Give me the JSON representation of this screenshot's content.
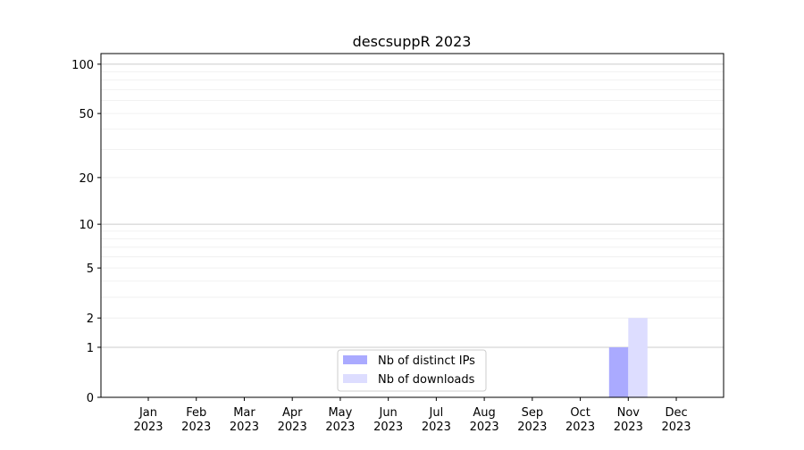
{
  "chart_data": {
    "type": "bar",
    "title": "descsuppR 2023",
    "xlabel": "",
    "ylabel": "",
    "y_scale": "symlog",
    "ylim": [
      0,
      116
    ],
    "y_ticks": [
      0,
      1,
      2,
      5,
      10,
      20,
      50,
      100
    ],
    "grid": true,
    "categories": [
      "Jan\n2023",
      "Feb\n2023",
      "Mar\n2023",
      "Apr\n2023",
      "May\n2023",
      "Jun\n2023",
      "Jul\n2023",
      "Aug\n2023",
      "Sep\n2023",
      "Oct\n2023",
      "Nov\n2023",
      "Dec\n2023"
    ],
    "series": [
      {
        "name": "Nb of distinct IPs",
        "color": "#aaaaff",
        "values": [
          0,
          0,
          0,
          0,
          0,
          0,
          0,
          0,
          0,
          0,
          1,
          0
        ]
      },
      {
        "name": "Nb of downloads",
        "color": "#ddddff",
        "values": [
          0,
          0,
          0,
          0,
          0,
          0,
          0,
          0,
          0,
          0,
          2,
          0
        ]
      }
    ],
    "legend_position": "bottom-center"
  }
}
